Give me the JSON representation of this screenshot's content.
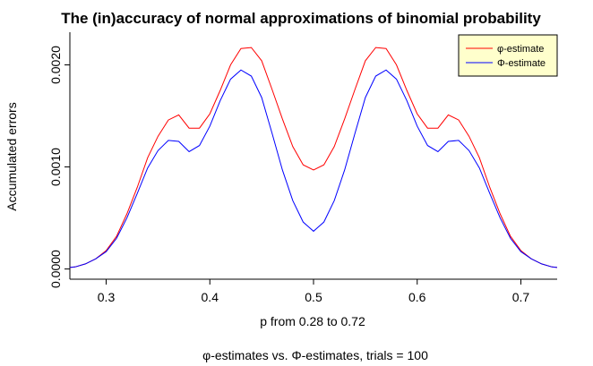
{
  "chart_data": {
    "type": "line",
    "title": "The (in)accuracy of normal approximations of binomial probability",
    "xlabel": "p from 0.28 to 0.72",
    "subtitle": "φ-estimates vs. Φ-estimates, trials = 100",
    "ylabel": "Accumulated errors",
    "xlim": [
      0.265,
      0.735
    ],
    "ylim": [
      -0.0001,
      0.00232
    ],
    "x_ticks": [
      "0.3",
      "0.4",
      "0.5",
      "0.6",
      "0.7"
    ],
    "x_tick_values": [
      0.3,
      0.4,
      0.5,
      0.6,
      0.7
    ],
    "y_ticks": [
      "0.0000",
      "0.0010",
      "0.0020"
    ],
    "y_tick_values": [
      0.0,
      0.001,
      0.002
    ],
    "legend_position": "top-right",
    "grid": false,
    "x": [
      0.26,
      0.27,
      0.28,
      0.29,
      0.3,
      0.31,
      0.32,
      0.33,
      0.34,
      0.35,
      0.36,
      0.37,
      0.38,
      0.39,
      0.4,
      0.41,
      0.42,
      0.43,
      0.44,
      0.45,
      0.46,
      0.47,
      0.48,
      0.49,
      0.5,
      0.51,
      0.52,
      0.53,
      0.54,
      0.55,
      0.56,
      0.57,
      0.58,
      0.59,
      0.6,
      0.61,
      0.62,
      0.63,
      0.64,
      0.65,
      0.66,
      0.67,
      0.68,
      0.69,
      0.7,
      0.71,
      0.72,
      0.73,
      0.74
    ],
    "series": [
      {
        "name": "φ-estimate",
        "color": "#ff0000",
        "values": [
          1e-05,
          2e-05,
          5e-05,
          0.0001,
          0.00018,
          0.00032,
          0.00054,
          0.0008,
          0.00109,
          0.0013,
          0.00146,
          0.00151,
          0.00138,
          0.00138,
          0.00152,
          0.00175,
          0.002,
          0.00216,
          0.00217,
          0.00204,
          0.00176,
          0.00147,
          0.0012,
          0.00102,
          0.00097,
          0.00102,
          0.0012,
          0.00147,
          0.00176,
          0.00204,
          0.00217,
          0.00216,
          0.002,
          0.00175,
          0.00152,
          0.00138,
          0.00138,
          0.00151,
          0.00146,
          0.0013,
          0.00109,
          0.0008,
          0.00054,
          0.00032,
          0.00018,
          0.0001,
          5e-05,
          2e-05,
          1e-05
        ]
      },
      {
        "name": "Φ-estimate",
        "color": "#0000ff",
        "values": [
          1e-05,
          2e-05,
          5e-05,
          0.0001,
          0.00017,
          0.0003,
          0.0005,
          0.00074,
          0.00099,
          0.00116,
          0.00126,
          0.00125,
          0.00115,
          0.00121,
          0.0014,
          0.00165,
          0.00186,
          0.00195,
          0.00189,
          0.00168,
          0.00133,
          0.00097,
          0.00067,
          0.00046,
          0.00037,
          0.00046,
          0.00067,
          0.00097,
          0.00133,
          0.00168,
          0.00189,
          0.00195,
          0.00186,
          0.00165,
          0.0014,
          0.00121,
          0.00115,
          0.00125,
          0.00126,
          0.00116,
          0.00099,
          0.00074,
          0.0005,
          0.0003,
          0.00017,
          0.0001,
          5e-05,
          2e-05,
          1e-05
        ]
      }
    ]
  },
  "colors": {
    "legend_bg": "#ffffcc",
    "axis": "#000000"
  }
}
